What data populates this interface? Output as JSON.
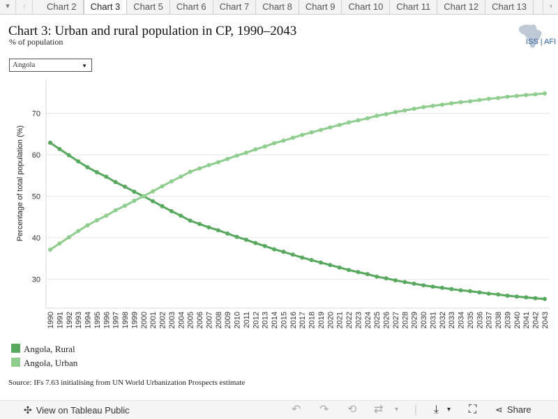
{
  "tabs": {
    "items": [
      "Chart 2",
      "Chart 3",
      "Chart 5",
      "Chart 6",
      "Chart 7",
      "Chart 8",
      "Chart 9",
      "Chart 10",
      "Chart 11",
      "Chart 12",
      "Chart 13"
    ],
    "active_index": 1,
    "menu_glyph": "▾",
    "prev_glyph": "‹",
    "next_glyph": "›"
  },
  "header": {
    "title": "Chart 3: Urban and rural population in CP, 1990–2043",
    "subtitle": "% of population",
    "logo_text": "ISS | AFI"
  },
  "filter": {
    "selected": "Angola",
    "arrow": "▼"
  },
  "colors": {
    "rural": "#59a85f",
    "urban": "#8fcd8e",
    "grid": "#e6e6e6"
  },
  "chart_data": {
    "type": "line",
    "title": "",
    "xlabel": "",
    "ylabel": "Percentage of total population (%)",
    "ylim": [
      23,
      78
    ],
    "yticks": [
      30,
      40,
      50,
      60,
      70
    ],
    "x": [
      1990,
      1991,
      1992,
      1993,
      1994,
      1995,
      1996,
      1997,
      1998,
      1999,
      2000,
      2001,
      2002,
      2003,
      2004,
      2005,
      2006,
      2007,
      2008,
      2009,
      2010,
      2011,
      2012,
      2013,
      2014,
      2015,
      2016,
      2017,
      2018,
      2019,
      2020,
      2021,
      2022,
      2023,
      2024,
      2025,
      2026,
      2027,
      2028,
      2029,
      2030,
      2031,
      2032,
      2033,
      2034,
      2035,
      2036,
      2037,
      2038,
      2039,
      2040,
      2041,
      2042,
      2043
    ],
    "series": [
      {
        "name": "Angola, Rural",
        "values": [
          62.9,
          61.4,
          59.9,
          58.4,
          57.0,
          55.8,
          54.7,
          53.4,
          52.3,
          51.1,
          50.0,
          48.8,
          47.6,
          46.4,
          45.3,
          44.1,
          43.3,
          42.5,
          41.8,
          41.0,
          40.2,
          39.5,
          38.7,
          38.0,
          37.2,
          36.6,
          35.9,
          35.2,
          34.6,
          34.0,
          33.4,
          32.8,
          32.2,
          31.7,
          31.2,
          30.6,
          30.2,
          29.7,
          29.3,
          28.9,
          28.5,
          28.2,
          27.9,
          27.6,
          27.3,
          27.1,
          26.8,
          26.5,
          26.3,
          26.0,
          25.8,
          25.6,
          25.4,
          25.2
        ]
      },
      {
        "name": "Angola, Urban",
        "values": [
          37.1,
          38.6,
          40.1,
          41.6,
          43.0,
          44.2,
          45.3,
          46.6,
          47.7,
          48.9,
          50.0,
          51.2,
          52.4,
          53.6,
          54.7,
          55.9,
          56.7,
          57.5,
          58.2,
          59.0,
          59.8,
          60.5,
          61.3,
          62.0,
          62.8,
          63.4,
          64.1,
          64.8,
          65.4,
          66.0,
          66.6,
          67.2,
          67.8,
          68.3,
          68.8,
          69.4,
          69.8,
          70.3,
          70.7,
          71.1,
          71.5,
          71.8,
          72.1,
          72.4,
          72.7,
          72.9,
          73.2,
          73.5,
          73.7,
          74.0,
          74.2,
          74.4,
          74.6,
          74.8
        ]
      }
    ],
    "legend_position": "bottom-left"
  },
  "source": "Source: IFs 7.63 initialising from UN World Urbanization Prospects estimate",
  "footer": {
    "view_label": "View on Tableau Public",
    "share_label": "Share"
  }
}
